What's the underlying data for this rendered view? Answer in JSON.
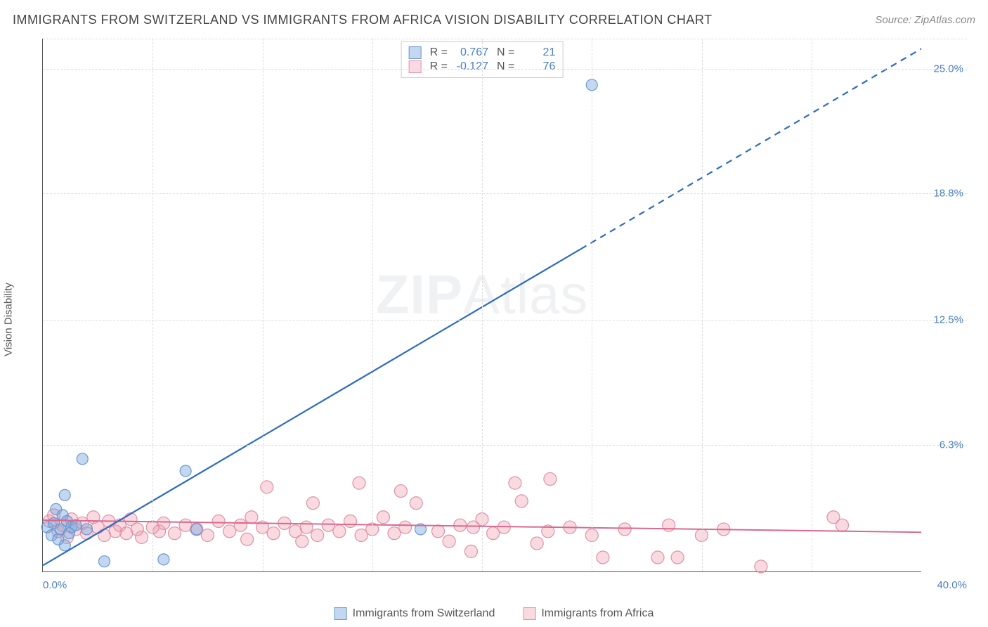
{
  "header": {
    "title": "IMMIGRANTS FROM SWITZERLAND VS IMMIGRANTS FROM AFRICA VISION DISABILITY CORRELATION CHART",
    "source_label": "Source: ",
    "source_name": "ZipAtlas.com"
  },
  "watermark": {
    "bold": "ZIP",
    "light": "Atlas"
  },
  "axes": {
    "y_label": "Vision Disability",
    "x_min_label": "0.0%",
    "x_max_label": "40.0%",
    "x_min": 0,
    "x_max": 40,
    "y_min": 0,
    "y_max": 26.5,
    "y_ticks": [
      {
        "value": 6.3,
        "label": "6.3%"
      },
      {
        "value": 12.5,
        "label": "12.5%"
      },
      {
        "value": 18.8,
        "label": "18.8%"
      },
      {
        "value": 25.0,
        "label": "25.0%"
      }
    ],
    "x_grid": [
      5,
      10,
      15,
      20,
      25,
      30,
      35
    ],
    "axis_label_color": "#4a7fc4",
    "grid_color": "#dddddd",
    "axis_color": "#555555"
  },
  "series": {
    "switzerland": {
      "name": "Immigrants from Switzerland",
      "fill": "rgba(122,168,222,0.45)",
      "stroke": "#6a98d0",
      "line_color": "#2e6bc0",
      "R": "0.767",
      "N": "21",
      "trend": {
        "x1": 0,
        "y1": 0.3,
        "x2": 40,
        "y2": 26.0,
        "solid_until_x": 24.5
      },
      "marker_r": 8,
      "points": [
        [
          0.2,
          2.2
        ],
        [
          0.4,
          1.8
        ],
        [
          0.5,
          2.4
        ],
        [
          0.6,
          3.1
        ],
        [
          0.7,
          1.6
        ],
        [
          0.8,
          2.1
        ],
        [
          0.9,
          2.8
        ],
        [
          1.0,
          1.3
        ],
        [
          1.1,
          2.5
        ],
        [
          1.2,
          1.9
        ],
        [
          1.3,
          2.2
        ],
        [
          1.5,
          2.3
        ],
        [
          1.8,
          5.6
        ],
        [
          1.0,
          3.8
        ],
        [
          2.0,
          2.1
        ],
        [
          2.8,
          0.5
        ],
        [
          5.5,
          0.6
        ],
        [
          6.5,
          5.0
        ],
        [
          7.0,
          2.1
        ],
        [
          17.2,
          2.1
        ],
        [
          25.0,
          24.2
        ]
      ]
    },
    "africa": {
      "name": "Immigrants from Africa",
      "fill": "rgba(238,150,170,0.35)",
      "stroke": "#e090a8",
      "line_color": "#d86a8f",
      "R": "-0.127",
      "N": "76",
      "trend": {
        "x1": 0,
        "y1": 2.55,
        "x2": 40,
        "y2": 1.95
      },
      "marker_r": 9,
      "points": [
        [
          0.3,
          2.5
        ],
        [
          0.5,
          2.8
        ],
        [
          0.7,
          2.0
        ],
        [
          0.9,
          2.3
        ],
        [
          1.1,
          1.7
        ],
        [
          1.3,
          2.6
        ],
        [
          1.5,
          2.1
        ],
        [
          1.8,
          2.4
        ],
        [
          2.0,
          1.9
        ],
        [
          2.3,
          2.7
        ],
        [
          2.5,
          2.2
        ],
        [
          2.8,
          1.8
        ],
        [
          3.0,
          2.5
        ],
        [
          3.3,
          2.0
        ],
        [
          3.5,
          2.3
        ],
        [
          3.8,
          1.9
        ],
        [
          4.0,
          2.6
        ],
        [
          4.3,
          2.1
        ],
        [
          4.5,
          1.7
        ],
        [
          5.0,
          2.2
        ],
        [
          5.3,
          2.0
        ],
        [
          5.5,
          2.4
        ],
        [
          6.0,
          1.9
        ],
        [
          6.5,
          2.3
        ],
        [
          7.0,
          2.1
        ],
        [
          7.5,
          1.8
        ],
        [
          8.0,
          2.5
        ],
        [
          8.5,
          2.0
        ],
        [
          9.0,
          2.3
        ],
        [
          9.3,
          1.6
        ],
        [
          9.5,
          2.7
        ],
        [
          10.0,
          2.2
        ],
        [
          10.2,
          4.2
        ],
        [
          10.5,
          1.9
        ],
        [
          11.0,
          2.4
        ],
        [
          11.5,
          2.0
        ],
        [
          11.8,
          1.5
        ],
        [
          12.0,
          2.2
        ],
        [
          12.3,
          3.4
        ],
        [
          12.5,
          1.8
        ],
        [
          13.0,
          2.3
        ],
        [
          13.5,
          2.0
        ],
        [
          14.0,
          2.5
        ],
        [
          14.4,
          4.4
        ],
        [
          14.5,
          1.8
        ],
        [
          15.0,
          2.1
        ],
        [
          15.5,
          2.7
        ],
        [
          16.0,
          1.9
        ],
        [
          16.3,
          4.0
        ],
        [
          16.5,
          2.2
        ],
        [
          17.0,
          3.4
        ],
        [
          18.0,
          2.0
        ],
        [
          18.5,
          1.5
        ],
        [
          19.0,
          2.3
        ],
        [
          19.5,
          1.0
        ],
        [
          19.6,
          2.2
        ],
        [
          20.0,
          2.6
        ],
        [
          20.5,
          1.9
        ],
        [
          21.0,
          2.2
        ],
        [
          21.5,
          4.4
        ],
        [
          21.8,
          3.5
        ],
        [
          22.5,
          1.4
        ],
        [
          23.0,
          2.0
        ],
        [
          23.1,
          4.6
        ],
        [
          24.0,
          2.2
        ],
        [
          25.0,
          1.8
        ],
        [
          25.5,
          0.7
        ],
        [
          26.5,
          2.1
        ],
        [
          28.0,
          0.7
        ],
        [
          28.5,
          2.3
        ],
        [
          28.9,
          0.7
        ],
        [
          30.0,
          1.8
        ],
        [
          31.0,
          2.1
        ],
        [
          32.7,
          0.25
        ],
        [
          36.0,
          2.7
        ],
        [
          36.4,
          2.3
        ]
      ]
    }
  },
  "legend": {
    "r_label": "R  =",
    "n_label": "N  ="
  }
}
